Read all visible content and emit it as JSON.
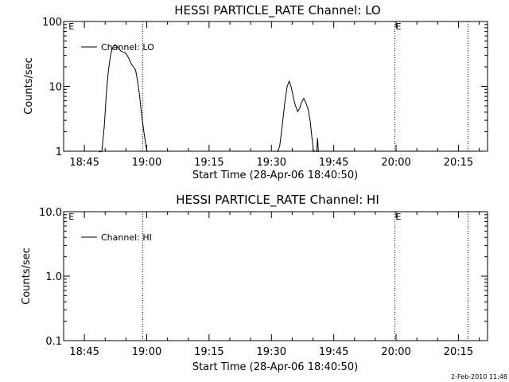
{
  "footer": {
    "timestamp": "2-Feb-2010 11:48"
  },
  "chart_data": [
    {
      "type": "line",
      "title": "HESSI PARTICLE_RATE Channel: LO",
      "xlabel": "Start Time (28-Apr-06 18:40:50)",
      "ylabel": "Counts/sec",
      "yscale": "log",
      "xlim": [
        "18:40",
        "20:22"
      ],
      "ylim": [
        1,
        100
      ],
      "x_ticks": [
        "18:45",
        "19:00",
        "19:15",
        "19:30",
        "19:45",
        "20:00",
        "20:15"
      ],
      "y_ticks": [
        "1",
        "10",
        "100"
      ],
      "legend": {
        "position": "top-left",
        "entries": [
          "Channel: LO"
        ]
      },
      "markers": [
        {
          "time": "18:41",
          "label": "E"
        },
        {
          "time": "19:59.7",
          "label": "E"
        }
      ],
      "dotted_lines": [
        "18:59",
        "19:59.7",
        "20:17.3"
      ],
      "series": [
        {
          "name": "Channel: LO",
          "segments": [
            [
              [
                "18:48.5",
                0.5
              ],
              [
                "18:49.2",
                1.0
              ],
              [
                "18:49.8",
                2.5
              ],
              [
                "18:50.3",
                8
              ],
              [
                "18:50.8",
                18
              ],
              [
                "18:51.3",
                30
              ],
              [
                "18:51.8",
                40
              ],
              [
                "18:52.3",
                44
              ],
              [
                "18:52.8",
                42
              ],
              [
                "18:53.3",
                38
              ],
              [
                "18:53.8",
                35
              ],
              [
                "18:54.3",
                34
              ],
              [
                "18:54.8",
                33
              ],
              [
                "18:55.3",
                30
              ],
              [
                "18:55.8",
                26
              ],
              [
                "18:56.3",
                22
              ],
              [
                "18:56.8",
                20
              ],
              [
                "18:57.3",
                18
              ],
              [
                "18:57.8",
                12
              ],
              [
                "18:58.3",
                7
              ],
              [
                "18:58.8",
                3.5
              ],
              [
                "18:59.3",
                2
              ],
              [
                "18:59.8",
                1.2
              ],
              [
                "19:00.1",
                0.6
              ]
            ],
            [
              [
                "19:31.5",
                0.7
              ],
              [
                "19:32.0",
                1.2
              ],
              [
                "19:32.6",
                2.5
              ],
              [
                "19:33.2",
                5.5
              ],
              [
                "19:33.8",
                10
              ],
              [
                "19:34.3",
                12
              ],
              [
                "19:34.8",
                9.5
              ],
              [
                "19:35.3",
                6.5
              ],
              [
                "19:35.8",
                5
              ],
              [
                "19:36.3",
                4.1
              ],
              [
                "19:36.8",
                4.6
              ],
              [
                "19:37.3",
                5.8
              ],
              [
                "19:37.8",
                6.5
              ],
              [
                "19:38.3",
                5.6
              ],
              [
                "19:38.8",
                4.5
              ],
              [
                "19:39.3",
                3
              ],
              [
                "19:39.8",
                1.5
              ],
              [
                "19:40.1",
                1.0
              ],
              [
                "19:40.4",
                0.6
              ]
            ],
            [
              [
                "19:40.9",
                0.9
              ],
              [
                "19:41.1",
                1.6
              ],
              [
                "19:41.3",
                0.9
              ]
            ]
          ]
        }
      ]
    },
    {
      "type": "line",
      "title": "HESSI PARTICLE_RATE Channel: HI",
      "xlabel": "Start Time (28-Apr-06 18:40:50)",
      "ylabel": "Counts/sec",
      "yscale": "log",
      "xlim": [
        "18:40",
        "20:22"
      ],
      "ylim": [
        0.1,
        10
      ],
      "x_ticks": [
        "18:45",
        "19:00",
        "19:15",
        "19:30",
        "19:45",
        "20:00",
        "20:15"
      ],
      "y_ticks": [
        "0.1",
        "1.0",
        "10.0"
      ],
      "legend": {
        "position": "top-left",
        "entries": [
          "Channel: HI"
        ]
      },
      "markers": [
        {
          "time": "18:41",
          "label": "E"
        },
        {
          "time": "19:59.7",
          "label": "E"
        }
      ],
      "dotted_lines": [
        "18:59",
        "19:59.7",
        "20:17.3"
      ],
      "series": [
        {
          "name": "Channel: HI",
          "segments": []
        }
      ]
    }
  ]
}
